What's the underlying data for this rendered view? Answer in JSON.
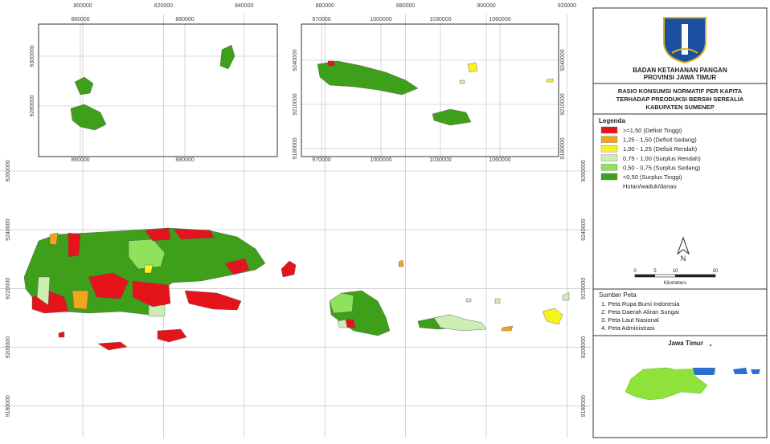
{
  "header": {
    "agency": "BADAN KETAHANAN PANGAN",
    "province": "PROVINSI JAWA TIMUR"
  },
  "map_title": [
    "RASIO KONSUMSI NORMATIF PER KAPITA",
    "TERHADAP PREODUKSI BERSIH SEREALIA",
    "KABUPATEN SUMENEP"
  ],
  "legend": {
    "title": "Legenda",
    "items": [
      {
        "label": ">=1,50 (Defisit Tinggi)",
        "color": "#e5141b"
      },
      {
        "label": "1,25 - 1,50 (Defisit Sedang)",
        "color": "#f2a51c"
      },
      {
        "label": "1,00 - 1,25 (Defisit Rendah)",
        "color": "#f8f21e"
      },
      {
        "label": "0,75 - 1,00 (Surplus Rendah)",
        "color": "#cdeeb3"
      },
      {
        "label": "0,50 - 0,75 (Surplus Sedang)",
        "color": "#8fe25c"
      },
      {
        "label": "<0,50 (Surplus Tinggi)",
        "color": "#3e9f1a"
      },
      {
        "label": "Hutan/waduk/danau",
        "color": "#ffffff"
      }
    ]
  },
  "north": "N",
  "scale": {
    "ticks": [
      0,
      5,
      10,
      20
    ],
    "unit": "Kilometers"
  },
  "sources": {
    "title": "Sumber Peta",
    "items": [
      "1. Peta Rupa Bumi Indonesia",
      "2. Peta Daerah Aliran Sungai",
      "3. Peta Laut Nasional",
      "4. Peta Administrasi"
    ]
  },
  "locator": {
    "title": "Jawa Timur"
  },
  "main_map": {
    "x_labels": [
      800000,
      820000,
      840000,
      860000,
      880000,
      900000,
      920000
    ],
    "y_labels": [
      9260000,
      9240000,
      9220000,
      9200000,
      9180000
    ]
  },
  "inset_1": {
    "x_labels": [
      860000,
      880000
    ],
    "y_labels": [
      9300000,
      9280000
    ]
  },
  "inset_2": {
    "x_labels": [
      970000,
      1000000,
      1030000,
      1060000
    ],
    "y_labels": [
      9240000,
      9210000,
      9180000
    ]
  }
}
